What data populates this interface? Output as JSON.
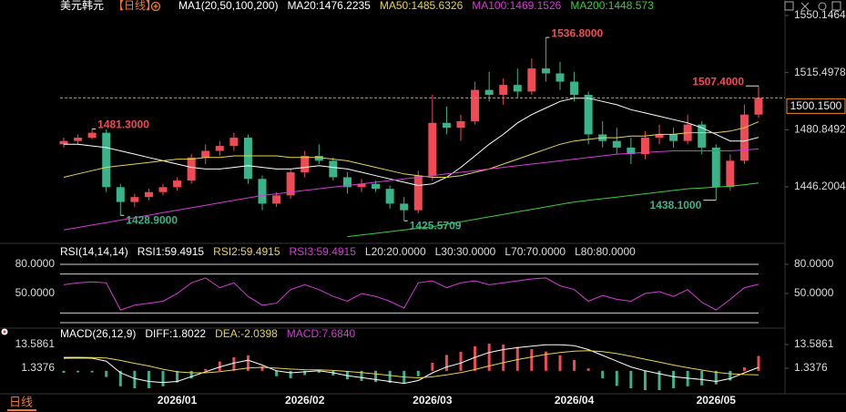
{
  "ui": {
    "period_tab": "日线"
  },
  "chart_data": [
    {
      "type": "candlestick",
      "title": "美元韩元",
      "period": "【日线】",
      "header": "MA1(20,50,100,200)",
      "categories": [
        null,
        null,
        null,
        null,
        null,
        null,
        null,
        null,
        "2026/01",
        null,
        null,
        null,
        null,
        null,
        null,
        null,
        null,
        "2026/02",
        null,
        null,
        null,
        null,
        null,
        null,
        null,
        null,
        "2026/03",
        null,
        null,
        null,
        null,
        null,
        null,
        null,
        null,
        null,
        "2026/04",
        null,
        null,
        null,
        null,
        null,
        null,
        null,
        null,
        null,
        "2026/05",
        null,
        null,
        null
      ],
      "open": [
        1472,
        1474,
        1476,
        1479,
        1446,
        1437,
        1440,
        1443,
        1446,
        1450,
        1464,
        1468,
        1471,
        1476,
        1451,
        1436,
        1441,
        1455,
        1465,
        1462,
        1452,
        1446,
        1448,
        1445,
        1436,
        1432,
        1453,
        1485,
        1482,
        1486,
        1505,
        1502,
        1508,
        1504,
        1518,
        1515,
        1510,
        1502,
        1478,
        1474,
        1470,
        1466,
        1476,
        1478,
        1474,
        1484,
        1470,
        1446,
        1462,
        1490
      ],
      "high": [
        1476,
        1478,
        1481.3,
        1481,
        1448,
        1442,
        1445,
        1448,
        1452,
        1466,
        1472,
        1474,
        1479,
        1478,
        1453,
        1443,
        1457,
        1468,
        1472,
        1464,
        1455,
        1451,
        1450,
        1447,
        1440,
        1456,
        1502,
        1495,
        1490,
        1510,
        1516,
        1512,
        1518,
        1524,
        1536.8,
        1522,
        1516,
        1504,
        1486,
        1482,
        1476,
        1480,
        1484,
        1482,
        1490,
        1486,
        1472,
        1466,
        1496,
        1507.4
      ],
      "low": [
        1470,
        1472,
        1475,
        1443,
        1428.9,
        1434,
        1438,
        1441,
        1444,
        1448,
        1460,
        1465,
        1468,
        1448,
        1432,
        1434,
        1439,
        1452,
        1460,
        1450,
        1442,
        1443,
        1443,
        1433,
        1425.5709,
        1430,
        1450,
        1478,
        1474,
        1484,
        1498,
        1496,
        1500,
        1502,
        1510,
        1505,
        1498,
        1472,
        1470,
        1466,
        1460,
        1463,
        1472,
        1470,
        1472,
        1466,
        1438.1,
        1444,
        1460,
        1488
      ],
      "close": [
        1474,
        1476,
        1479,
        1446,
        1437,
        1440,
        1443,
        1446,
        1450,
        1464,
        1468,
        1471,
        1476,
        1451,
        1436,
        1441,
        1455,
        1465,
        1462,
        1452,
        1446,
        1448,
        1445,
        1436,
        1432,
        1453,
        1485,
        1482,
        1486,
        1505,
        1502,
        1508,
        1504,
        1518,
        1515,
        1510,
        1502,
        1478,
        1474,
        1470,
        1466,
        1476,
        1478,
        1474,
        1484,
        1470,
        1446,
        1462,
        1490,
        1500.15
      ],
      "up_color": "#f04b54",
      "down_color": "#3bb38a",
      "series": [
        {
          "name": "MA20:1476.2235",
          "color": "#ffffff",
          "values": [
            1472,
            1472,
            1471,
            1470,
            1468,
            1466,
            1464,
            1462,
            1460,
            1458,
            1457,
            1457,
            1458,
            1459,
            1458,
            1457,
            1457,
            1458,
            1459,
            1458,
            1457,
            1455,
            1453,
            1451,
            1449,
            1447,
            1448,
            1452,
            1458,
            1465,
            1472,
            1478,
            1485,
            1490,
            1494,
            1498,
            1500,
            1500,
            1498,
            1496,
            1493,
            1491,
            1489,
            1487,
            1485,
            1482,
            1478,
            1474,
            1474,
            1476.2235
          ]
        },
        {
          "name": "MA50:1485.6326",
          "color": "#e8d44d",
          "values": [
            1452,
            1454,
            1456,
            1458,
            1459,
            1460,
            1461,
            1462,
            1463,
            1463,
            1464,
            1464,
            1465,
            1465,
            1465,
            1465,
            1464,
            1464,
            1464,
            1463,
            1462,
            1460,
            1458,
            1456,
            1454,
            1453,
            1452,
            1452,
            1453,
            1455,
            1457,
            1460,
            1463,
            1466,
            1469,
            1472,
            1474,
            1475,
            1476,
            1476,
            1477,
            1477,
            1478,
            1478,
            1479,
            1479,
            1479,
            1480,
            1482,
            1485.6326
          ]
        },
        {
          "name": "MA100:1469.1526",
          "color": "#d63bd6",
          "values": [
            1420,
            1421.5,
            1423,
            1424.5,
            1426,
            1427.5,
            1429,
            1430.5,
            1432,
            1433.5,
            1435,
            1436.5,
            1438,
            1439.5,
            1441,
            1442,
            1443,
            1444,
            1445,
            1446,
            1447,
            1448,
            1449,
            1450,
            1451,
            1452,
            1453,
            1454,
            1455,
            1456,
            1457,
            1458,
            1459,
            1460,
            1461,
            1462,
            1463,
            1464,
            1465,
            1466,
            1466.5,
            1467,
            1467.5,
            1468,
            1468,
            1468,
            1468,
            1468,
            1468.5,
            1469.1526
          ]
        },
        {
          "name": "MA200:1448.573",
          "color": "#3dcc3d",
          "values": [
            null,
            null,
            null,
            null,
            null,
            null,
            null,
            null,
            null,
            null,
            null,
            null,
            null,
            null,
            null,
            null,
            null,
            null,
            null,
            null,
            1416,
            1417,
            1418,
            1419,
            1420,
            1421,
            1422,
            1423.5,
            1425,
            1426.5,
            1428,
            1429.5,
            1431,
            1432.5,
            1434,
            1435.5,
            1437,
            1438,
            1439,
            1440,
            1441,
            1442,
            1443,
            1444,
            1445,
            1445.5,
            1446,
            1446.5,
            1447.5,
            1448.573
          ]
        }
      ],
      "annotations": [
        {
          "value": 1481.3,
          "label": "1481.3000"
        },
        {
          "value": 1428.9,
          "label": "1428.9000"
        },
        {
          "value": 1425.5709,
          "label": "1425.5709"
        },
        {
          "value": 1536.8,
          "label": "1536.8000"
        },
        {
          "value": 1507.4,
          "label": "1507.4000"
        },
        {
          "value": 1438.1,
          "label": "1438.1000"
        }
      ],
      "last_label": "1500.1500",
      "ylim": [
        1413.0,
        1555.1
      ],
      "yticks": [
        1550.1464,
        1515.4978,
        1480.8492,
        1446.2004
      ]
    },
    {
      "type": "line",
      "title": "RSI(14,14,14)",
      "legend": [
        {
          "label": "RSI1:59.4915",
          "color": "#ffffff"
        },
        {
          "label": "RSI2:59.4915",
          "color": "#e8d44d"
        },
        {
          "label": "RSI3:59.4915",
          "color": "#d63bd6"
        },
        {
          "label": "L20:20.0000",
          "color": "#dddddd"
        },
        {
          "label": "L30:30.0000",
          "color": "#dddddd"
        },
        {
          "label": "L70:70.0000",
          "color": "#dddddd"
        },
        {
          "label": "L80:80.0000",
          "color": "#dddddd"
        }
      ],
      "color": "#d63bd6",
      "values": [
        59,
        61,
        62,
        61,
        33,
        38,
        40,
        42,
        50,
        61,
        66,
        56,
        61,
        47,
        38,
        40,
        54,
        59,
        54,
        47,
        42,
        50,
        47,
        42,
        35,
        61,
        63,
        56,
        61,
        63,
        59,
        61,
        63,
        65,
        66,
        58,
        54,
        42,
        48,
        44,
        42,
        50,
        52,
        47,
        54,
        41,
        33,
        44,
        56,
        59.4915
      ],
      "levels": [
        20,
        30,
        70,
        80
      ],
      "ylim": [
        14.38,
        86.56
      ],
      "yticks": [
        {
          "value": 80,
          "label": "80.0000"
        },
        {
          "value": 50,
          "label": "50.0000"
        }
      ]
    },
    {
      "type": "macd",
      "title": "MACD(26,12,9)",
      "series": [
        {
          "name": "DIFF:1.8022",
          "color": "#ffffff",
          "values": [
            6.5,
            6.6,
            6.5,
            5,
            -1,
            -4,
            -5.5,
            -6,
            -5.5,
            -3,
            -0.5,
            2,
            4,
            5.5,
            3,
            0,
            -1,
            -0.5,
            0,
            -1,
            -2.5,
            -3.5,
            -4.5,
            -5.5,
            -6.5,
            -5,
            -1,
            2,
            4,
            7,
            9.5,
            11,
            12,
            12.8,
            13.5,
            13.5,
            13,
            11,
            8,
            5,
            2,
            0,
            -1.5,
            -3,
            -3.8,
            -4.5,
            -5.5,
            -4,
            -1,
            1.8022
          ]
        },
        {
          "name": "DEA:-2.0398",
          "color": "#e8d44d",
          "values": [
            7,
            7,
            6.9,
            6.6,
            5.4,
            3.9,
            2.5,
            0.8,
            -0.5,
            -1,
            -1,
            -0.4,
            0.5,
            1.5,
            1.8,
            1.4,
            0.9,
            0.6,
            0.5,
            0.2,
            -0.3,
            -0.9,
            -1.6,
            -2.4,
            -3.2,
            -3.6,
            -3.1,
            -2.1,
            -0.9,
            0.7,
            2.5,
            4.2,
            5.8,
            7.2,
            8.5,
            9.5,
            10.2,
            10.4,
            9.9,
            8.9,
            7.5,
            6,
            4.5,
            3,
            1.6,
            0.4,
            -0.8,
            -1.5,
            -1.9,
            -2.0398
          ]
        }
      ],
      "histogram": {
        "name": "MACD:7.6840",
        "color": "#d63bd6",
        "up_color": "#f04b54",
        "down_color": "#3bb38a",
        "values": [
          -1,
          -0.8,
          -0.8,
          -3.2,
          -8,
          -9,
          -9,
          -8,
          -6,
          -4,
          1,
          4.8,
          7,
          8,
          2.4,
          -2.8,
          -3.8,
          -2.2,
          -1,
          -2.4,
          -4.4,
          -5.2,
          -5.8,
          -6.2,
          -6.6,
          -2.8,
          4.2,
          8.2,
          9.8,
          12.6,
          14,
          13.6,
          12.4,
          11.2,
          10,
          8,
          5.6,
          1.2,
          -3.8,
          -7.8,
          -9,
          -10,
          -10,
          -9,
          -8,
          -7.5,
          -7,
          -5,
          1.8,
          7.684
        ]
      },
      "ylim": [
        -11.853,
        20.182
      ],
      "yticks": [
        13.5861,
        1.3376
      ]
    }
  ]
}
